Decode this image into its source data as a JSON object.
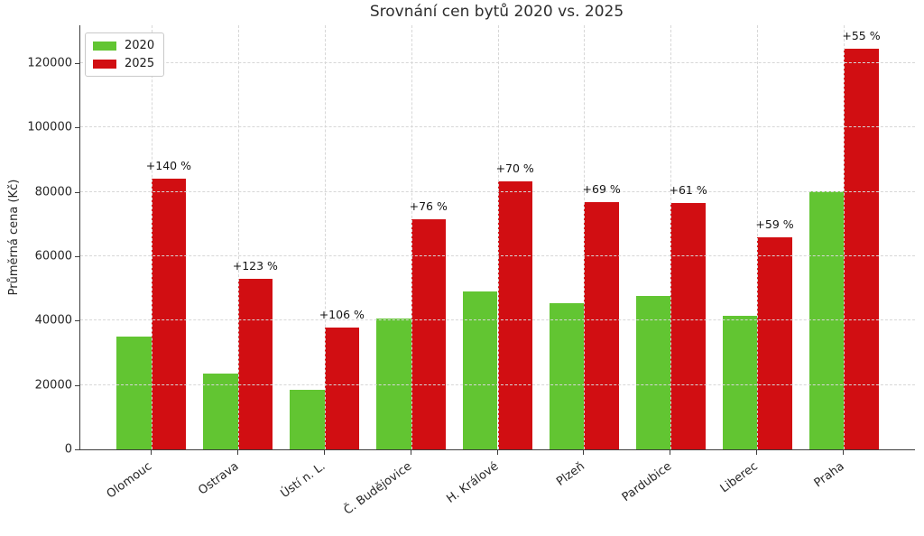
{
  "chart_data": {
    "type": "bar",
    "title": "Srovnání cen bytů 2020 vs. 2025",
    "xlabel": "",
    "ylabel": "Průměrná cena (Kč)",
    "categories": [
      "Olomouc",
      "Ostrava",
      "Ústí n. L.",
      "Č. Budějovice",
      "H. Králové",
      "Plzeň",
      "Pardubice",
      "Liberec",
      "Praha"
    ],
    "series": [
      {
        "name": "2020",
        "color": "#62c532",
        "values": [
          35000,
          23700,
          18400,
          40700,
          49000,
          45500,
          47600,
          41500,
          80300
        ]
      },
      {
        "name": "2025",
        "color": "#d10e12",
        "values": [
          84000,
          52900,
          37900,
          71600,
          83300,
          76900,
          76600,
          66000,
          124500
        ]
      }
    ],
    "annotations": [
      "+140 %",
      "+123 %",
      "+106 %",
      "+76 %",
      "+70 %",
      "+69 %",
      "+61 %",
      "+59 %",
      "+55 %"
    ],
    "yticks": [
      0,
      20000,
      40000,
      60000,
      80000,
      100000,
      120000
    ],
    "ylim": [
      0,
      131800
    ],
    "xlim": [
      -0.82,
      8.82
    ],
    "bar_width": 0.4,
    "grid": "dashed-both-axes-above-bars",
    "legend_position": "upper-left"
  }
}
